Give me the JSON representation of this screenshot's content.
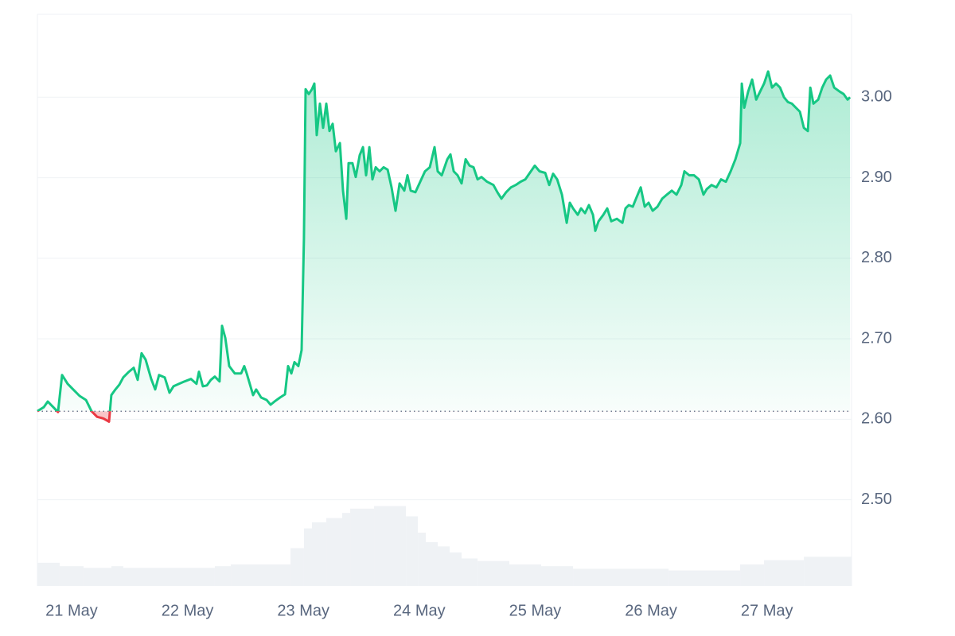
{
  "chart_data": {
    "type": "line",
    "color": "#16c784",
    "negative_color": "#ea3943",
    "baseline": 2.61,
    "xlim": [
      20.705,
      27.73
    ],
    "ylim": [
      2.393,
      3.103
    ],
    "xticks": [
      {
        "value": 21,
        "label": "21 May"
      },
      {
        "value": 22,
        "label": "22 May"
      },
      {
        "value": 23,
        "label": "23 May"
      },
      {
        "value": 24,
        "label": "24 May"
      },
      {
        "value": 25,
        "label": "25 May"
      },
      {
        "value": 26,
        "label": "26 May"
      },
      {
        "value": 27,
        "label": "27 May"
      }
    ],
    "yticks": [
      {
        "value": 2.5,
        "label": "2.50"
      },
      {
        "value": 2.6,
        "label": "2.60"
      },
      {
        "value": 2.7,
        "label": "2.70"
      },
      {
        "value": 2.8,
        "label": "2.80"
      },
      {
        "value": 2.9,
        "label": "2.90"
      },
      {
        "value": 3.0,
        "label": "3.00"
      }
    ],
    "grid": true,
    "x": [
      20.705,
      20.76,
      20.794,
      20.842,
      20.883,
      20.918,
      20.966,
      21.014,
      21.069,
      21.124,
      21.172,
      21.22,
      21.275,
      21.323,
      21.343,
      21.378,
      21.412,
      21.446,
      21.495,
      21.536,
      21.57,
      21.604,
      21.639,
      21.687,
      21.721,
      21.755,
      21.804,
      21.845,
      21.879,
      21.927,
      21.975,
      22.03,
      22.078,
      22.099,
      22.133,
      22.168,
      22.202,
      22.236,
      22.277,
      22.298,
      22.326,
      22.36,
      22.408,
      22.463,
      22.49,
      22.511,
      22.566,
      22.593,
      22.635,
      22.683,
      22.717,
      22.751,
      22.799,
      22.841,
      22.868,
      22.896,
      22.923,
      22.957,
      22.985,
      23.005,
      23.019,
      23.047,
      23.074,
      23.095,
      23.115,
      23.143,
      23.17,
      23.198,
      23.225,
      23.253,
      23.28,
      23.315,
      23.342,
      23.37,
      23.39,
      23.424,
      23.452,
      23.486,
      23.514,
      23.541,
      23.569,
      23.596,
      23.624,
      23.658,
      23.692,
      23.727,
      23.761,
      23.795,
      23.83,
      23.871,
      23.898,
      23.926,
      23.967,
      24.008,
      24.049,
      24.091,
      24.132,
      24.159,
      24.194,
      24.242,
      24.269,
      24.297,
      24.331,
      24.365,
      24.4,
      24.434,
      24.468,
      24.503,
      24.537,
      24.585,
      24.64,
      24.674,
      24.709,
      24.75,
      24.791,
      24.832,
      24.874,
      24.915,
      24.949,
      24.997,
      25.038,
      25.087,
      25.121,
      25.155,
      25.19,
      25.231,
      25.272,
      25.299,
      25.327,
      25.368,
      25.396,
      25.43,
      25.464,
      25.499,
      25.519,
      25.547,
      25.588,
      25.622,
      25.657,
      25.705,
      25.753,
      25.78,
      25.808,
      25.842,
      25.876,
      25.911,
      25.945,
      25.979,
      26.014,
      26.055,
      26.096,
      26.137,
      26.179,
      26.22,
      26.261,
      26.288,
      26.33,
      26.371,
      26.412,
      26.453,
      26.481,
      26.522,
      26.563,
      26.604,
      26.646,
      26.687,
      26.728,
      26.769,
      26.783,
      26.804,
      26.838,
      26.872,
      26.907,
      26.941,
      26.975,
      27.01,
      27.044,
      27.078,
      27.113,
      27.147,
      27.181,
      27.216,
      27.25,
      27.284,
      27.319,
      27.353,
      27.374,
      27.401,
      27.442,
      27.477,
      27.511,
      27.545,
      27.58,
      27.628,
      27.662,
      27.696,
      27.717
    ],
    "values": [
      2.61,
      2.615,
      2.622,
      2.615,
      2.609,
      2.655,
      2.644,
      2.637,
      2.629,
      2.624,
      2.61,
      2.603,
      2.601,
      2.597,
      2.63,
      2.637,
      2.643,
      2.652,
      2.659,
      2.664,
      2.649,
      2.682,
      2.674,
      2.65,
      2.637,
      2.655,
      2.652,
      2.633,
      2.641,
      2.644,
      2.647,
      2.65,
      2.644,
      2.659,
      2.641,
      2.642,
      2.649,
      2.653,
      2.647,
      2.716,
      2.701,
      2.666,
      2.657,
      2.657,
      2.666,
      2.657,
      2.63,
      2.637,
      2.627,
      2.624,
      2.618,
      2.622,
      2.627,
      2.631,
      2.666,
      2.657,
      2.671,
      2.666,
      2.686,
      2.824,
      3.01,
      3.004,
      3.01,
      3.017,
      2.953,
      2.992,
      2.962,
      2.992,
      2.958,
      2.967,
      2.933,
      2.943,
      2.884,
      2.849,
      2.918,
      2.918,
      2.901,
      2.928,
      2.938,
      2.903,
      2.938,
      2.898,
      2.913,
      2.908,
      2.913,
      2.91,
      2.888,
      2.859,
      2.893,
      2.884,
      2.903,
      2.884,
      2.882,
      2.895,
      2.908,
      2.913,
      2.938,
      2.908,
      2.903,
      2.923,
      2.929,
      2.908,
      2.903,
      2.893,
      2.923,
      2.915,
      2.913,
      2.898,
      2.901,
      2.895,
      2.891,
      2.882,
      2.874,
      2.882,
      2.888,
      2.891,
      2.895,
      2.898,
      2.905,
      2.915,
      2.908,
      2.906,
      2.891,
      2.905,
      2.898,
      2.879,
      2.844,
      2.869,
      2.862,
      2.854,
      2.862,
      2.856,
      2.866,
      2.854,
      2.834,
      2.846,
      2.854,
      2.862,
      2.846,
      2.849,
      2.844,
      2.862,
      2.866,
      2.864,
      2.876,
      2.888,
      2.864,
      2.869,
      2.859,
      2.864,
      2.874,
      2.879,
      2.884,
      2.879,
      2.891,
      2.908,
      2.903,
      2.903,
      2.898,
      2.879,
      2.886,
      2.891,
      2.888,
      2.898,
      2.895,
      2.908,
      2.923,
      2.943,
      3.017,
      2.987,
      3.007,
      3.022,
      2.997,
      3.007,
      3.017,
      3.032,
      3.012,
      3.017,
      3.012,
      3.0,
      2.994,
      2.992,
      2.987,
      2.982,
      2.962,
      2.958,
      3.012,
      2.992,
      2.997,
      3.012,
      3.022,
      3.027,
      3.012,
      3.007,
      3.004,
      2.997,
      3.0
    ],
    "volume": {
      "color": "#eff2f5",
      "ylim": [
        0,
        100
      ],
      "bins": [
        20.705,
        20.897,
        21.103,
        21.343,
        21.446,
        22.236,
        22.374,
        22.889,
        23.005,
        23.074,
        23.198,
        23.335,
        23.404,
        23.61,
        23.885,
        23.988,
        24.056,
        24.159,
        24.262,
        24.365,
        24.503,
        24.777,
        25.052,
        25.327,
        26.151,
        26.769,
        26.975,
        27.319,
        27.731
      ],
      "values": [
        27,
        23,
        21,
        23,
        21,
        23,
        25,
        44,
        67,
        74,
        79,
        85,
        90,
        93,
        81,
        62,
        51,
        46,
        39,
        32,
        29,
        25,
        23,
        20,
        18,
        25,
        30,
        34
      ]
    }
  }
}
